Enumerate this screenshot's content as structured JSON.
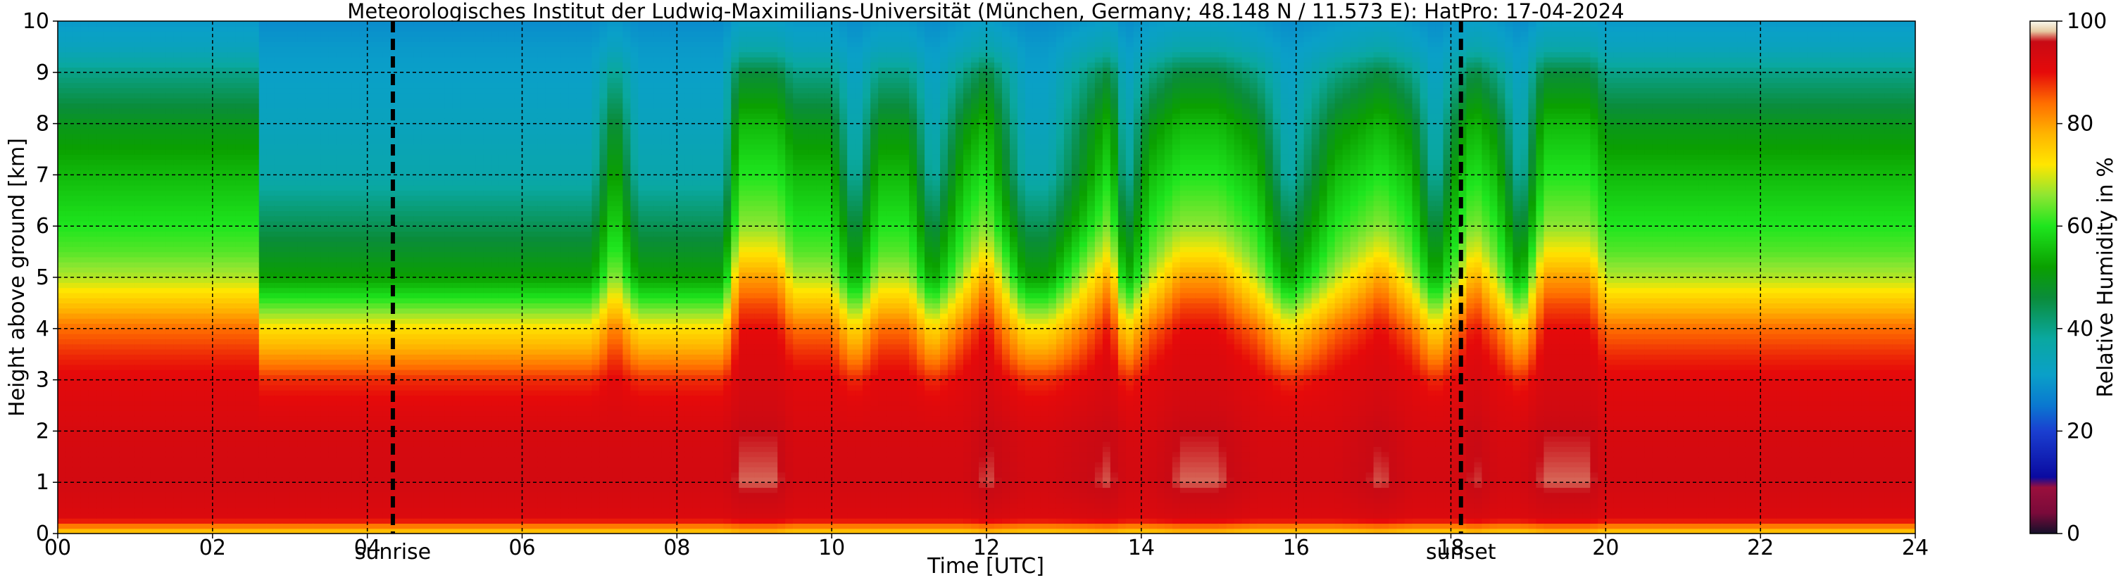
{
  "chart_data": {
    "type": "heatmap",
    "title": "Meteorologisches Institut der Ludwig-Maximilians-Universität (München, Germany; 48.148 N / 11.573 E):    HatPro: 17-04-2024",
    "xlabel": "Time [UTC]",
    "ylabel": "Height above ground [km]",
    "xlim": [
      0,
      24
    ],
    "ylim": [
      0,
      10
    ],
    "x_tick_labels": [
      "00",
      "02",
      "04",
      "06",
      "08",
      "10",
      "12",
      "14",
      "16",
      "18",
      "20",
      "22",
      "24"
    ],
    "y_tick_labels": [
      "0",
      "1",
      "2",
      "3",
      "4",
      "5",
      "6",
      "7",
      "8",
      "9",
      "10"
    ],
    "grid": true,
    "markers": [
      {
        "label": "sunrise",
        "time": 4.33
      },
      {
        "label": "sunset",
        "time": 18.13
      }
    ],
    "colorbar": {
      "label": "Relative Humidity in %",
      "range": [
        0,
        100
      ],
      "tick_labels": [
        "0",
        "20",
        "40",
        "60",
        "80",
        "100"
      ]
    },
    "colors": {
      "palette_stops": [
        [
          0,
          "#14102a"
        ],
        [
          4,
          "#7a0a3a"
        ],
        [
          9,
          "#9a0f3c"
        ],
        [
          11,
          "#0a0aa0"
        ],
        [
          20,
          "#1a3fd0"
        ],
        [
          25,
          "#0a78d0"
        ],
        [
          31,
          "#0aa0c8"
        ],
        [
          38,
          "#0aa8a0"
        ],
        [
          46,
          "#0a8c3a"
        ],
        [
          52,
          "#0aa000"
        ],
        [
          60,
          "#1ee61e"
        ],
        [
          66,
          "#8ee632"
        ],
        [
          72,
          "#ffe600"
        ],
        [
          78,
          "#ffb400"
        ],
        [
          84,
          "#ff6e00"
        ],
        [
          90,
          "#e60a0a"
        ],
        [
          96,
          "#c80a14"
        ],
        [
          98,
          "#e6c8a0"
        ],
        [
          100,
          "#fafaf0"
        ]
      ]
    },
    "humidity_profiles": {
      "heights_km": [
        0,
        0.3,
        1,
        2,
        2.5,
        3,
        3.5,
        4,
        4.5,
        5,
        5.5,
        6,
        7,
        8,
        9,
        9.5,
        10
      ],
      "states": {
        "moist": [
          74,
          92,
          94,
          93,
          92,
          91,
          88,
          84,
          76,
          68,
          63,
          60,
          55,
          49,
          40,
          33,
          30
        ],
        "dry": [
          74,
          92,
          94,
          93,
          91,
          88,
          80,
          73,
          62,
          52,
          48,
          44,
          36,
          33,
          31,
          30,
          28
        ],
        "saturated": [
          76,
          93,
          97,
          96,
          94,
          93,
          92,
          90,
          86,
          80,
          72,
          66,
          60,
          55,
          46,
          36,
          31
        ]
      }
    },
    "time_series": {
      "times_utc": [
        0,
        2.0,
        2.55,
        2.6,
        6.9,
        7.2,
        7.5,
        8.6,
        8.8,
        9.3,
        9.5,
        10.0,
        10.3,
        10.6,
        11.0,
        11.3,
        11.7,
        12.0,
        12.5,
        12.8,
        13.6,
        13.8,
        14.1,
        14.5,
        15.0,
        15.5,
        15.9,
        16.5,
        17.1,
        17.5,
        17.8,
        18.1,
        18.3,
        18.6,
        18.9,
        19.2,
        19.8,
        20.0,
        20.5,
        22.0,
        23.4,
        24
      ],
      "state_codes": [
        "moist",
        "moist",
        "moist",
        "dry",
        "dry",
        "moist",
        "dry",
        "dry",
        "saturated",
        "saturated",
        "moist",
        "moist",
        "dry",
        "moist",
        "moist",
        "dry",
        "moist",
        "saturated",
        "dry",
        "dry",
        "saturated",
        "dry",
        "moist",
        "saturated",
        "saturated",
        "moist",
        "dry",
        "moist",
        "saturated",
        "moist",
        "dry",
        "moist",
        "saturated",
        "moist",
        "dry",
        "saturated",
        "saturated",
        "moist",
        "moist",
        "moist",
        "moist",
        "moist"
      ]
    }
  }
}
